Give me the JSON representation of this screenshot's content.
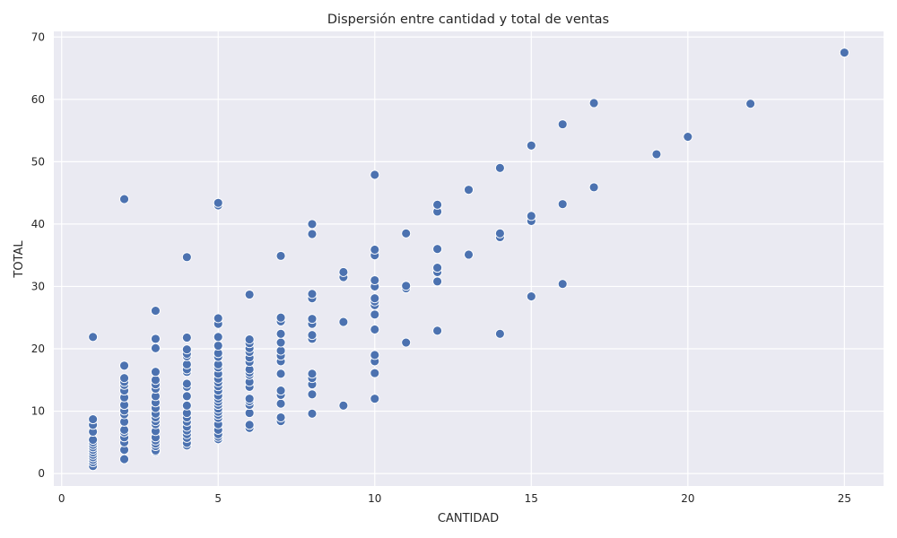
{
  "chart_data": {
    "type": "scatter",
    "title": "Dispersión entre cantidad y total de ventas",
    "xlabel": "CANTIDAD",
    "ylabel": "TOTAL",
    "xlim": [
      -0.25,
      26.25
    ],
    "ylim": [
      -2.0,
      70.9
    ],
    "xticks": [
      0,
      5,
      10,
      15,
      20,
      25
    ],
    "yticks": [
      0,
      10,
      20,
      30,
      40,
      50,
      60,
      70
    ],
    "grid": true,
    "background_color": "#eaeaf2",
    "grid_color": "#ffffff",
    "marker_color": "#4c72b0",
    "points": [
      [
        1,
        1.2
      ],
      [
        1,
        1.8
      ],
      [
        1,
        2.2
      ],
      [
        1,
        2.6
      ],
      [
        1,
        3.0
      ],
      [
        1,
        3.4
      ],
      [
        1,
        3.8
      ],
      [
        1,
        4.2
      ],
      [
        1,
        4.6
      ],
      [
        1,
        5.0
      ],
      [
        1,
        5.4
      ],
      [
        1,
        6.7
      ],
      [
        1,
        7.8
      ],
      [
        1,
        8.7
      ],
      [
        1,
        21.9
      ],
      [
        2,
        2.3
      ],
      [
        2,
        3.8
      ],
      [
        2,
        5.0
      ],
      [
        2,
        5.8
      ],
      [
        2,
        6.6
      ],
      [
        2,
        7.0
      ],
      [
        2,
        8.3
      ],
      [
        2,
        9.5
      ],
      [
        2,
        10.1
      ],
      [
        2,
        11.0
      ],
      [
        2,
        12.2
      ],
      [
        2,
        13.3
      ],
      [
        2,
        14.2
      ],
      [
        2,
        14.7
      ],
      [
        2,
        15.3
      ],
      [
        2,
        17.3
      ],
      [
        2,
        44.0
      ],
      [
        3,
        3.5
      ],
      [
        3,
        3.7
      ],
      [
        3,
        4.4
      ],
      [
        3,
        4.8
      ],
      [
        3,
        5.3
      ],
      [
        3,
        5.8
      ],
      [
        3,
        6.8
      ],
      [
        3,
        7.9
      ],
      [
        3,
        8.4
      ],
      [
        3,
        9.0
      ],
      [
        3,
        9.6
      ],
      [
        3,
        10.5
      ],
      [
        3,
        11.4
      ],
      [
        3,
        12.4
      ],
      [
        3,
        13.6
      ],
      [
        3,
        14.3
      ],
      [
        3,
        15.0
      ],
      [
        3,
        16.3
      ],
      [
        3,
        20.1
      ],
      [
        3,
        21.6
      ],
      [
        3,
        26.1
      ],
      [
        4,
        4.5
      ],
      [
        4,
        4.9
      ],
      [
        4,
        5.7
      ],
      [
        4,
        6.3
      ],
      [
        4,
        6.9
      ],
      [
        4,
        7.5
      ],
      [
        4,
        8.3
      ],
      [
        4,
        9.0
      ],
      [
        4,
        9.7
      ],
      [
        4,
        10.9
      ],
      [
        4,
        12.4
      ],
      [
        4,
        13.9
      ],
      [
        4,
        14.4
      ],
      [
        4,
        16.3
      ],
      [
        4,
        16.7
      ],
      [
        4,
        17.5
      ],
      [
        4,
        18.8
      ],
      [
        4,
        19.2
      ],
      [
        4,
        19.9
      ],
      [
        4,
        21.8
      ],
      [
        4,
        34.7
      ],
      [
        5,
        5.5
      ],
      [
        5,
        5.9
      ],
      [
        5,
        6.3
      ],
      [
        5,
        7.0
      ],
      [
        5,
        7.9
      ],
      [
        5,
        8.9
      ],
      [
        5,
        9.4
      ],
      [
        5,
        9.9
      ],
      [
        5,
        10.4
      ],
      [
        5,
        11.0
      ],
      [
        5,
        11.5
      ],
      [
        5,
        12.0
      ],
      [
        5,
        12.5
      ],
      [
        5,
        13.3
      ],
      [
        5,
        14.0
      ],
      [
        5,
        14.6
      ],
      [
        5,
        15.2
      ],
      [
        5,
        16.0
      ],
      [
        5,
        17.0
      ],
      [
        5,
        17.5
      ],
      [
        5,
        18.7
      ],
      [
        5,
        19.3
      ],
      [
        5,
        20.5
      ],
      [
        5,
        21.9
      ],
      [
        5,
        24.0
      ],
      [
        5,
        24.9
      ],
      [
        5,
        43.0
      ],
      [
        5,
        43.4
      ],
      [
        6,
        7.3
      ],
      [
        6,
        7.8
      ],
      [
        6,
        9.7
      ],
      [
        6,
        11.0
      ],
      [
        6,
        11.6
      ],
      [
        6,
        12.0
      ],
      [
        6,
        13.9
      ],
      [
        6,
        14.7
      ],
      [
        6,
        15.8
      ],
      [
        6,
        16.2
      ],
      [
        6,
        16.7
      ],
      [
        6,
        17.9
      ],
      [
        6,
        18.6
      ],
      [
        6,
        19.5
      ],
      [
        6,
        20.1
      ],
      [
        6,
        20.9
      ],
      [
        6,
        21.5
      ],
      [
        6,
        28.7
      ],
      [
        7,
        8.4
      ],
      [
        7,
        9.0
      ],
      [
        7,
        11.2
      ],
      [
        7,
        12.6
      ],
      [
        7,
        13.3
      ],
      [
        7,
        16.0
      ],
      [
        7,
        18.0
      ],
      [
        7,
        18.9
      ],
      [
        7,
        19.7
      ],
      [
        7,
        21.0
      ],
      [
        7,
        22.4
      ],
      [
        7,
        24.4
      ],
      [
        7,
        25.0
      ],
      [
        7,
        34.9
      ],
      [
        8,
        9.6
      ],
      [
        8,
        12.7
      ],
      [
        8,
        14.3
      ],
      [
        8,
        15.3
      ],
      [
        8,
        16.0
      ],
      [
        8,
        21.6
      ],
      [
        8,
        22.2
      ],
      [
        8,
        24.0
      ],
      [
        8,
        24.8
      ],
      [
        8,
        28.1
      ],
      [
        8,
        28.8
      ],
      [
        8,
        38.4
      ],
      [
        8,
        40.0
      ],
      [
        9,
        10.9
      ],
      [
        9,
        24.3
      ],
      [
        9,
        31.5
      ],
      [
        9,
        32.3
      ],
      [
        10,
        12.0
      ],
      [
        10,
        16.1
      ],
      [
        10,
        18.0
      ],
      [
        10,
        19.0
      ],
      [
        10,
        23.1
      ],
      [
        10,
        25.5
      ],
      [
        10,
        27.0
      ],
      [
        10,
        27.6
      ],
      [
        10,
        28.1
      ],
      [
        10,
        30.0
      ],
      [
        10,
        31.0
      ],
      [
        10,
        35.0
      ],
      [
        10,
        35.9
      ],
      [
        10,
        47.9
      ],
      [
        11,
        21.0
      ],
      [
        11,
        29.7
      ],
      [
        11,
        30.1
      ],
      [
        11,
        38.5
      ],
      [
        12,
        22.9
      ],
      [
        12,
        30.8
      ],
      [
        12,
        32.3
      ],
      [
        12,
        33.0
      ],
      [
        12,
        36.0
      ],
      [
        12,
        42.0
      ],
      [
        12,
        43.1
      ],
      [
        13,
        35.1
      ],
      [
        13,
        45.5
      ],
      [
        14,
        22.4
      ],
      [
        14,
        37.9
      ],
      [
        14,
        38.5
      ],
      [
        14,
        49.0
      ],
      [
        15,
        28.4
      ],
      [
        15,
        40.5
      ],
      [
        15,
        41.3
      ],
      [
        15,
        52.6
      ],
      [
        16,
        30.4
      ],
      [
        16,
        43.2
      ],
      [
        16,
        56.0
      ],
      [
        17,
        45.9
      ],
      [
        17,
        59.4
      ],
      [
        19,
        51.2
      ],
      [
        20,
        54.0
      ],
      [
        22,
        59.3
      ],
      [
        25,
        67.5
      ]
    ]
  }
}
